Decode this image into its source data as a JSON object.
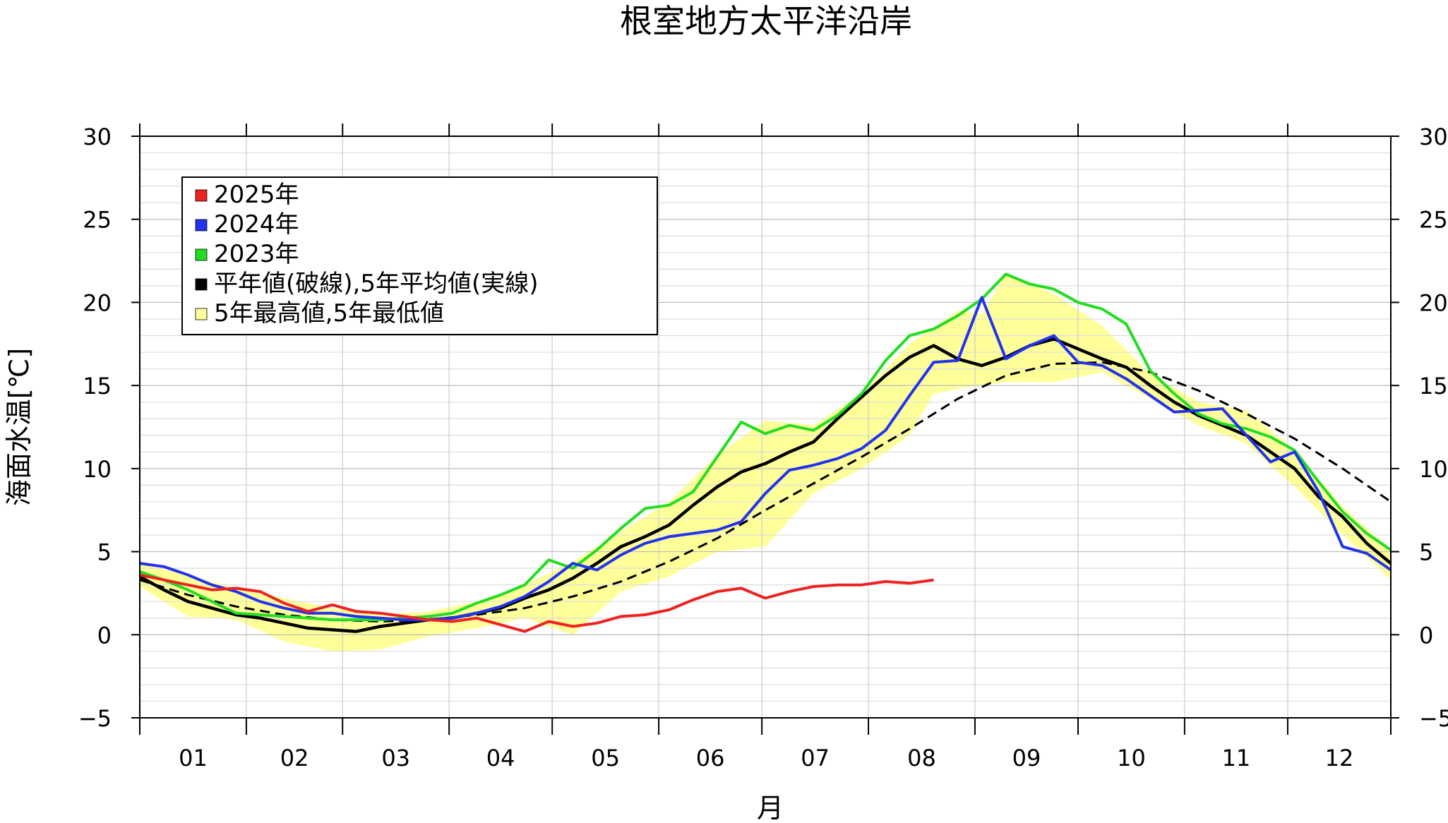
{
  "chart_data": {
    "type": "line",
    "title": "根室地方太平洋沿岸",
    "xlabel": "月",
    "ylabel": "海面水温[℃]",
    "ylim": [
      -5,
      30
    ],
    "yticks": [
      30,
      25,
      20,
      15,
      10,
      5,
      0,
      -5
    ],
    "ytick_labels": [
      "30",
      "25",
      "20",
      "15",
      "10",
      "5",
      "0",
      "−5"
    ],
    "months": [
      "01",
      "02",
      "03",
      "04",
      "05",
      "06",
      "07",
      "08",
      "09",
      "10",
      "11",
      "12"
    ],
    "xrange_days": [
      1,
      365
    ],
    "grid": true,
    "legend_position": "top-left",
    "legend": [
      {
        "label": "2025年",
        "color": "#ee2222"
      },
      {
        "label": "2024年",
        "color": "#2233ee"
      },
      {
        "label": "2023年",
        "color": "#22dd22"
      },
      {
        "label": "平年値(破線),5年平均値(実線)",
        "color": "#000000"
      },
      {
        "label": "5年最高値,5年最低値",
        "color": "#ffff99"
      }
    ],
    "series": [
      {
        "name": "2025年",
        "color": "#ee2222",
        "x": [
          1,
          8,
          15,
          22,
          29,
          36,
          43,
          50,
          57,
          64,
          71,
          78,
          85,
          92,
          99,
          106,
          113,
          120,
          127,
          134,
          141,
          148,
          155,
          162,
          169,
          176,
          183,
          190,
          197,
          204,
          211,
          218,
          225,
          232
        ],
        "y": [
          3.6,
          3.3,
          3.0,
          2.7,
          2.8,
          2.6,
          1.9,
          1.4,
          1.8,
          1.4,
          1.3,
          1.1,
          0.9,
          0.8,
          1.0,
          0.6,
          0.2,
          0.8,
          0.5,
          0.7,
          1.1,
          1.2,
          1.5,
          2.1,
          2.6,
          2.8,
          2.2,
          2.6,
          2.9,
          3.0,
          3.0,
          3.2,
          3.1,
          3.3
        ]
      },
      {
        "name": "2024年",
        "color": "#2233ee",
        "x": [
          1,
          8,
          15,
          22,
          29,
          36,
          43,
          50,
          57,
          64,
          71,
          78,
          85,
          92,
          99,
          106,
          113,
          120,
          127,
          134,
          141,
          148,
          155,
          162,
          169,
          176,
          183,
          190,
          197,
          204,
          211,
          218,
          225,
          232,
          239,
          246,
          253,
          260,
          267,
          274,
          281,
          288,
          295,
          302,
          309,
          316,
          323,
          330,
          337,
          344,
          351,
          358,
          365
        ],
        "y": [
          4.3,
          4.1,
          3.6,
          3.0,
          2.6,
          2.0,
          1.6,
          1.3,
          1.3,
          1.1,
          1.0,
          0.9,
          0.9,
          1.0,
          1.3,
          1.7,
          2.3,
          3.2,
          4.3,
          3.9,
          4.8,
          5.5,
          5.9,
          6.1,
          6.3,
          6.8,
          8.5,
          9.9,
          10.2,
          10.6,
          11.2,
          12.3,
          14.4,
          16.4,
          16.5,
          20.3,
          16.6,
          17.4,
          18.0,
          16.4,
          16.2,
          15.4,
          14.4,
          13.4,
          13.5,
          13.6,
          12.0,
          10.4,
          11.0,
          8.6,
          5.3,
          4.9,
          3.9
        ]
      },
      {
        "name": "2023年",
        "color": "#22dd22",
        "x": [
          1,
          8,
          15,
          22,
          29,
          36,
          43,
          50,
          57,
          64,
          71,
          78,
          85,
          92,
          99,
          106,
          113,
          120,
          127,
          134,
          141,
          148,
          155,
          162,
          169,
          176,
          183,
          190,
          197,
          204,
          211,
          218,
          225,
          232,
          239,
          246,
          253,
          260,
          267,
          274,
          281,
          288,
          295,
          302,
          309,
          316,
          323,
          330,
          337,
          344,
          351,
          358,
          365
        ],
        "y": [
          3.8,
          3.3,
          2.7,
          2.0,
          1.3,
          1.2,
          1.1,
          1.0,
          0.9,
          0.9,
          0.9,
          1.0,
          1.1,
          1.3,
          1.9,
          2.4,
          3.0,
          4.5,
          4.0,
          5.1,
          6.4,
          7.6,
          7.8,
          8.6,
          10.7,
          12.8,
          12.1,
          12.6,
          12.3,
          13.2,
          14.5,
          16.5,
          18.0,
          18.4,
          19.2,
          20.2,
          21.7,
          21.1,
          20.8,
          20.0,
          19.6,
          18.7,
          15.9,
          14.5,
          13.3,
          12.7,
          12.4,
          11.9,
          11.1,
          9.2,
          7.4,
          6.1,
          5.1
        ]
      },
      {
        "name": "平年値",
        "color": "#000000",
        "dash": true,
        "x": [
          1,
          15,
          29,
          43,
          57,
          71,
          85,
          99,
          113,
          127,
          141,
          155,
          169,
          183,
          197,
          211,
          225,
          239,
          253,
          267,
          281,
          295,
          309,
          323,
          337,
          351,
          365
        ],
        "y": [
          3.3,
          2.4,
          1.7,
          1.2,
          0.9,
          0.8,
          0.9,
          1.2,
          1.6,
          2.3,
          3.2,
          4.4,
          5.8,
          7.5,
          9.1,
          10.7,
          12.4,
          14.2,
          15.6,
          16.3,
          16.4,
          15.8,
          14.7,
          13.3,
          11.8,
          10.0,
          8.0
        ]
      },
      {
        "name": "5年平均値",
        "color": "#000000",
        "x": [
          1,
          8,
          15,
          22,
          29,
          36,
          43,
          50,
          57,
          64,
          71,
          78,
          85,
          92,
          99,
          106,
          113,
          120,
          127,
          134,
          141,
          148,
          155,
          162,
          169,
          176,
          183,
          190,
          197,
          204,
          211,
          218,
          225,
          232,
          239,
          246,
          253,
          260,
          267,
          274,
          281,
          288,
          295,
          302,
          309,
          316,
          323,
          330,
          337,
          344,
          351,
          358,
          365
        ],
        "y": [
          3.5,
          2.7,
          2.0,
          1.6,
          1.2,
          1.0,
          0.7,
          0.4,
          0.3,
          0.2,
          0.5,
          0.7,
          0.9,
          1.0,
          1.3,
          1.6,
          2.2,
          2.7,
          3.4,
          4.3,
          5.3,
          5.9,
          6.6,
          7.8,
          8.9,
          9.8,
          10.3,
          11.0,
          11.6,
          13.0,
          14.3,
          15.6,
          16.7,
          17.4,
          16.6,
          16.2,
          16.7,
          17.4,
          17.8,
          17.2,
          16.6,
          16.1,
          15.0,
          14.0,
          13.2,
          12.6,
          12.0,
          11.0,
          10.0,
          8.3,
          7.1,
          5.5,
          4.3
        ]
      },
      {
        "name": "5年最高値",
        "color": "#ffff99",
        "x": [
          1,
          15,
          29,
          43,
          57,
          71,
          85,
          99,
          113,
          127,
          141,
          155,
          169,
          183,
          197,
          211,
          225,
          239,
          246,
          253,
          267,
          281,
          295,
          309,
          323,
          337,
          351,
          365
        ],
        "y": [
          4.3,
          3.6,
          2.8,
          2.2,
          1.6,
          1.2,
          1.4,
          2.0,
          3.0,
          4.4,
          6.2,
          8.0,
          10.8,
          12.9,
          12.6,
          14.5,
          17.5,
          19.5,
          19.3,
          21.7,
          20.5,
          18.6,
          15.7,
          14.0,
          13.5,
          11.1,
          7.7,
          5.1
        ]
      },
      {
        "name": "5年最低値",
        "color": "#ffff99",
        "x": [
          1,
          15,
          29,
          43,
          57,
          71,
          85,
          99,
          113,
          127,
          141,
          155,
          169,
          183,
          197,
          211,
          225,
          232,
          239,
          253,
          267,
          281,
          295,
          309,
          323,
          337,
          351,
          365
        ],
        "y": [
          2.9,
          1.1,
          0.9,
          -0.4,
          -1.0,
          -0.9,
          -0.1,
          0.4,
          1.0,
          0.0,
          2.6,
          3.5,
          5.0,
          5.3,
          8.5,
          10.0,
          12.0,
          14.5,
          14.8,
          15.2,
          15.2,
          15.8,
          14.2,
          12.6,
          11.5,
          8.9,
          6.0,
          3.3
        ]
      }
    ]
  }
}
